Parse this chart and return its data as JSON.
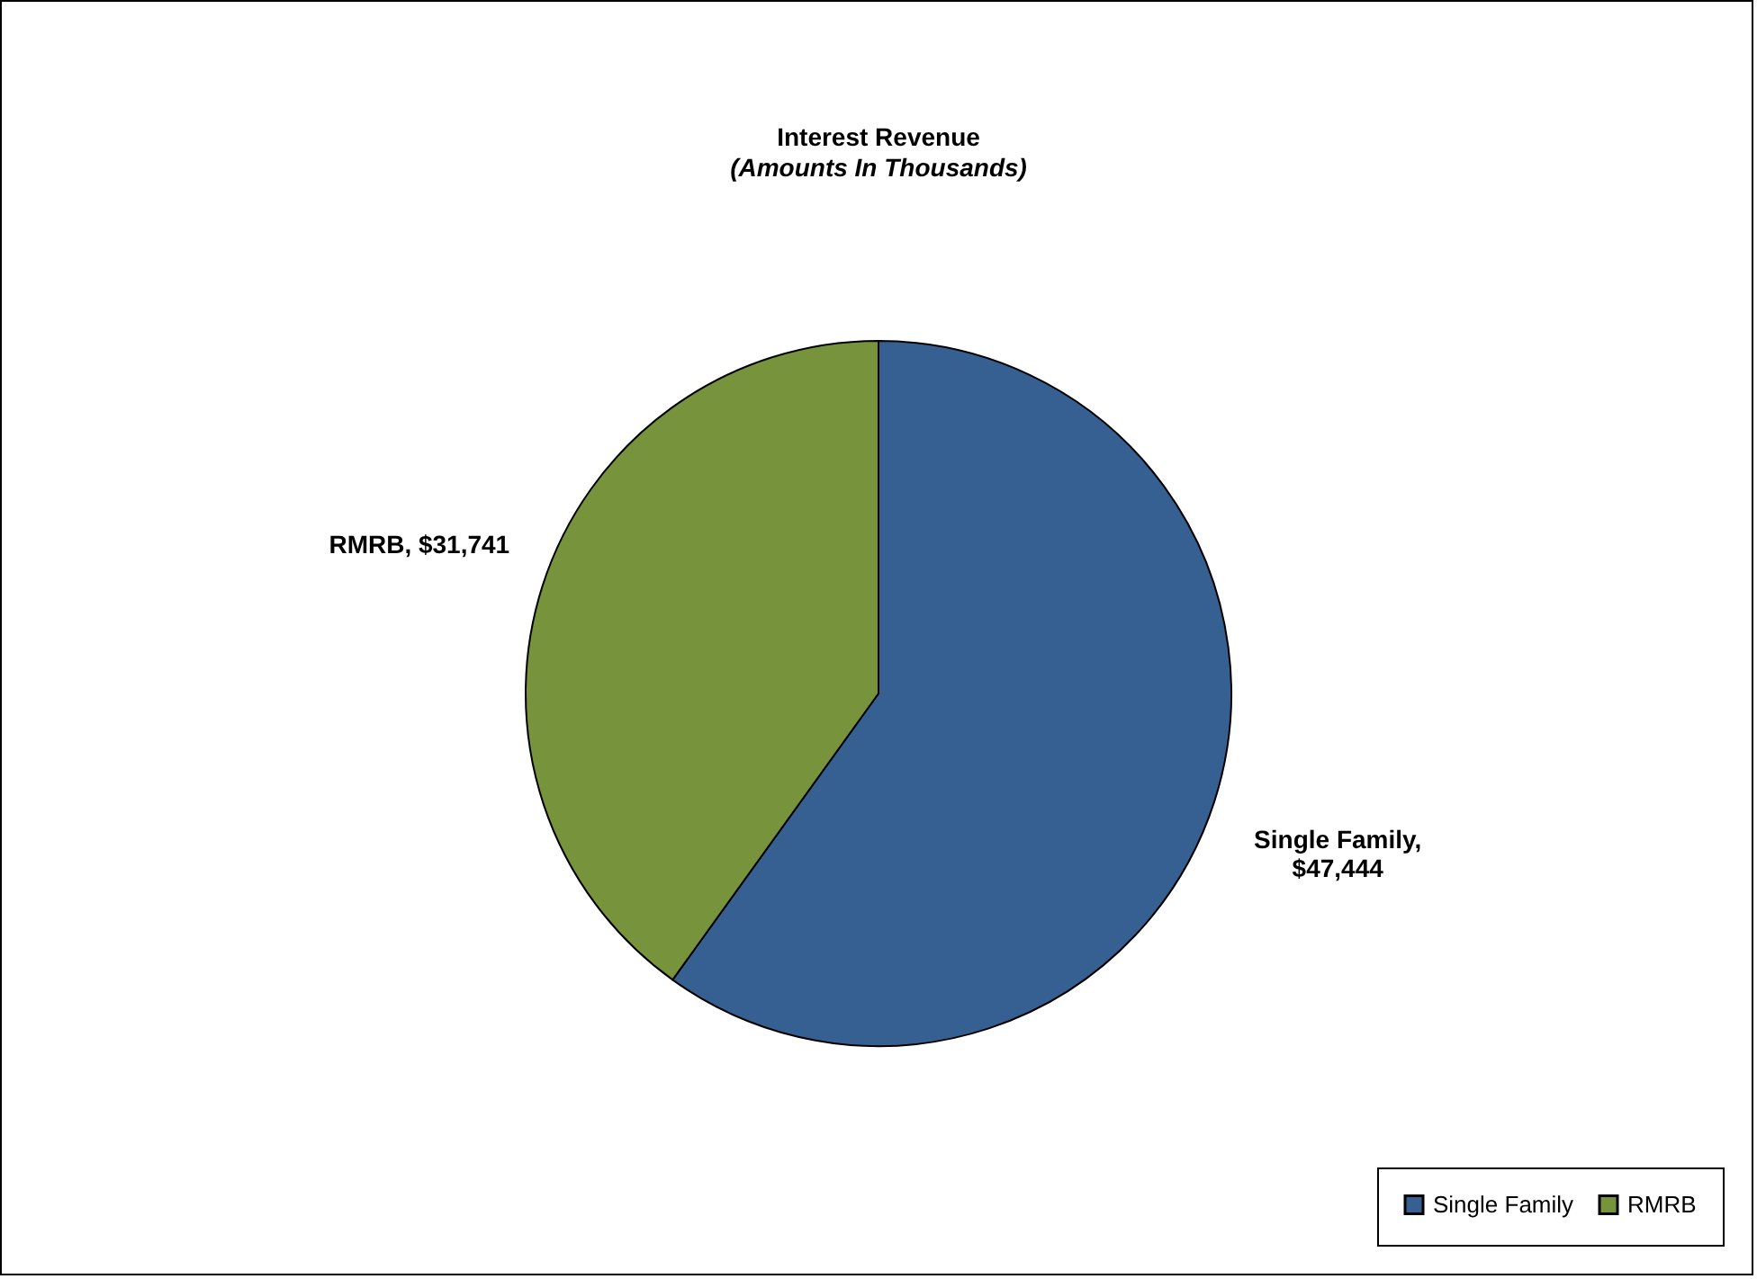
{
  "chart_data": {
    "type": "pie",
    "title": "Interest Revenue",
    "subtitle": "(Amounts In Thousands)",
    "categories": [
      "Single Family",
      "RMRB"
    ],
    "values": [
      47444,
      31741
    ],
    "colors": [
      "#376092",
      "#77933c"
    ],
    "value_labels": [
      "Single Family,\n$47,444",
      "RMRB, $31,741"
    ],
    "legend": "bottom right"
  }
}
